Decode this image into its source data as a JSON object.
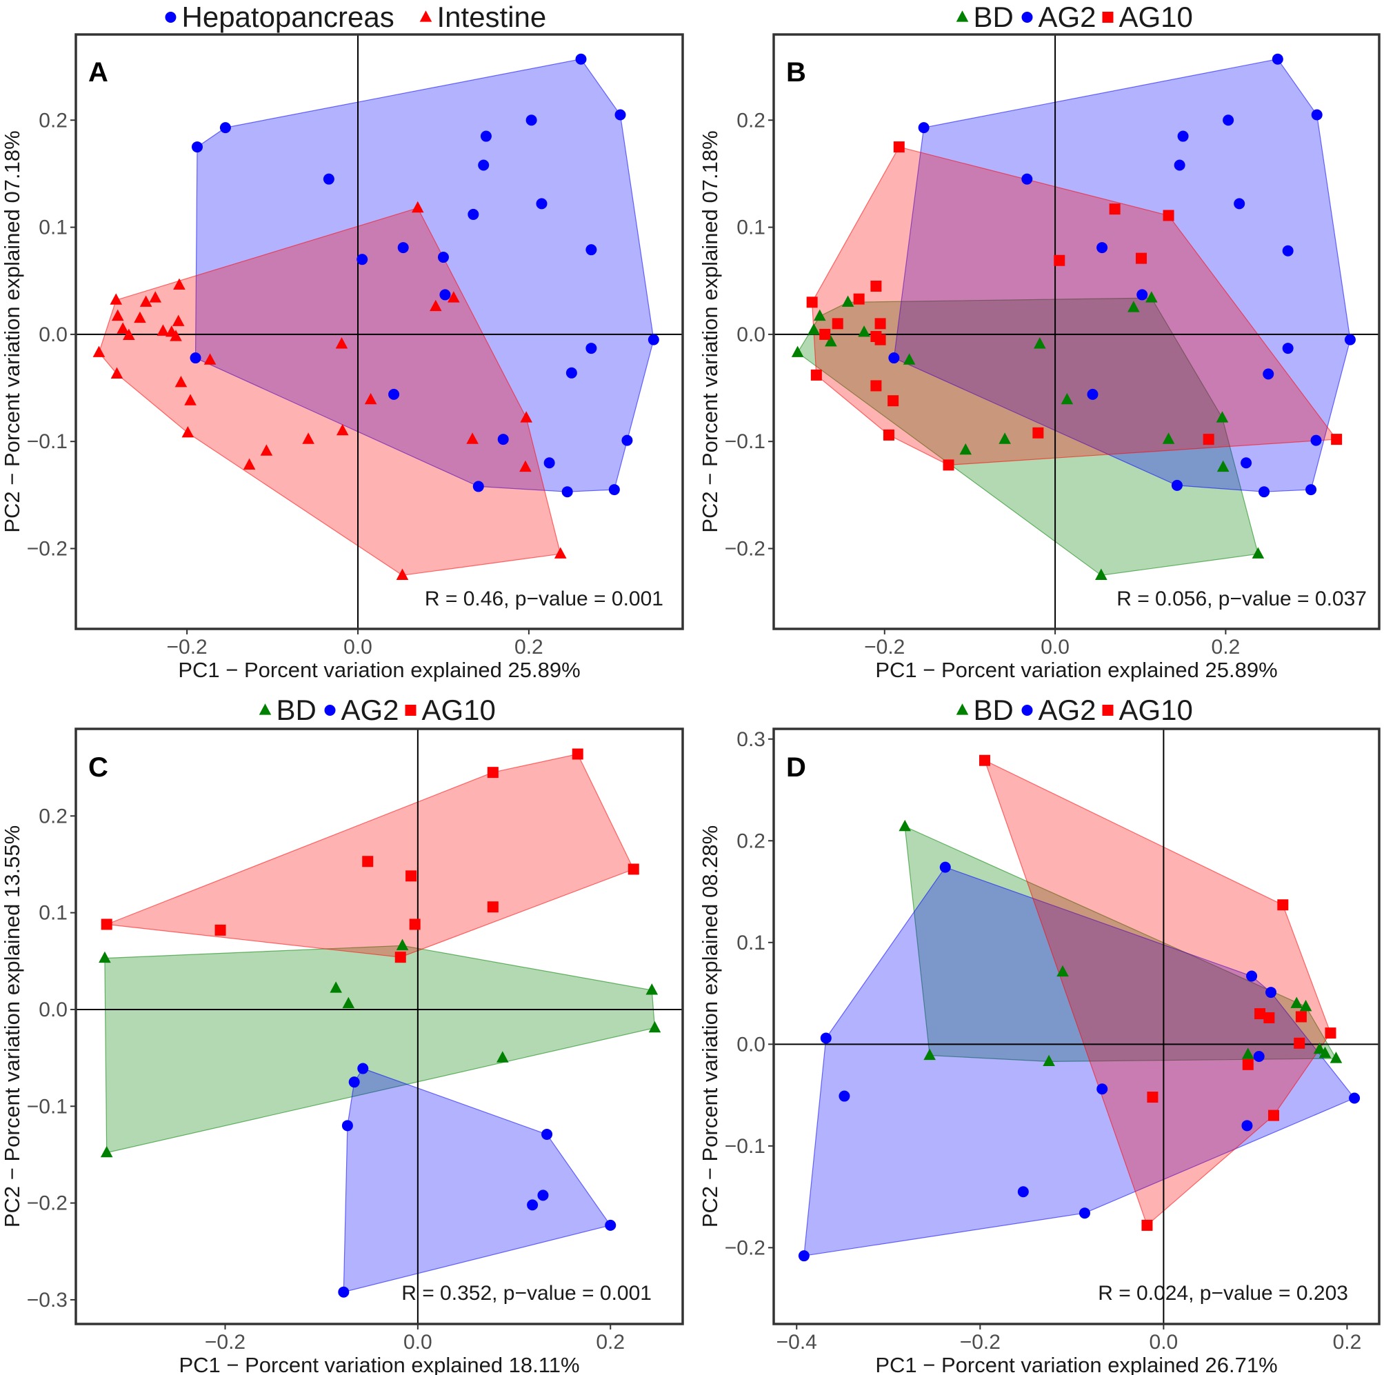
{
  "colors": {
    "hepatopancreas": "#0000ff",
    "intestine": "#ff0000",
    "BD": "#008000",
    "AG2": "#0000ff",
    "AG10": "#ff0000"
  },
  "chart_data": [
    {
      "type": "scatter",
      "panel": "A",
      "xlabel": "PC1 − Porcent variation explained 25.89%",
      "ylabel": "PC2 − Porcent variation explained 07.18%",
      "xlim": [
        -0.33,
        0.38
      ],
      "ylim": [
        -0.275,
        0.28
      ],
      "xticks": [
        -0.2,
        0.0,
        0.2
      ],
      "xtick_labels": [
        "−0.2",
        "0.0",
        "0.2"
      ],
      "yticks": [
        -0.2,
        -0.1,
        0.0,
        0.1,
        0.2
      ],
      "ytick_labels": [
        "−0.2",
        "−0.1",
        "0.0",
        "0.1",
        "0.2"
      ],
      "legend_position": "top",
      "annotation": "R = 0.46, p−value = 0.001",
      "grid": false,
      "series": [
        {
          "name": "Hepatopancreas",
          "color": "#0000ff",
          "marker": "circle",
          "hull": true,
          "points": [
            [
              0.261,
              0.257
            ],
            [
              0.307,
              0.205
            ],
            [
              0.203,
              0.2
            ],
            [
              0.15,
              0.185
            ],
            [
              0.147,
              0.158
            ],
            [
              0.215,
              0.122
            ],
            [
              0.135,
              0.112
            ],
            [
              0.273,
              0.079
            ],
            [
              0.1,
              0.072
            ],
            [
              0.005,
              0.07
            ],
            [
              0.053,
              0.081
            ],
            [
              0.102,
              0.037
            ],
            [
              0.346,
              -0.005
            ],
            [
              0.273,
              -0.013
            ],
            [
              0.25,
              -0.036
            ],
            [
              0.315,
              -0.099
            ],
            [
              0.224,
              -0.12
            ],
            [
              0.245,
              -0.147
            ],
            [
              0.3,
              -0.145
            ],
            [
              0.17,
              -0.098
            ],
            [
              0.141,
              -0.142
            ],
            [
              0.042,
              -0.056
            ],
            [
              -0.188,
              0.175
            ],
            [
              -0.155,
              0.193
            ],
            [
              -0.034,
              0.145
            ],
            [
              -0.19,
              -0.022
            ]
          ]
        },
        {
          "name": "Intestine",
          "color": "#ff0000",
          "marker": "triangle",
          "hull": true,
          "points": [
            [
              0.07,
              0.118
            ],
            [
              -0.303,
              -0.017
            ],
            [
              -0.283,
              0.032
            ],
            [
              -0.281,
              0.017
            ],
            [
              -0.275,
              0.005
            ],
            [
              -0.268,
              -0.001
            ],
            [
              -0.255,
              0.015
            ],
            [
              -0.248,
              0.03
            ],
            [
              -0.237,
              0.034
            ],
            [
              -0.228,
              0.003
            ],
            [
              -0.218,
              0.002
            ],
            [
              -0.213,
              -0.002
            ],
            [
              -0.21,
              0.012
            ],
            [
              -0.209,
              0.046
            ],
            [
              -0.173,
              -0.024
            ],
            [
              -0.282,
              -0.037
            ],
            [
              -0.207,
              -0.045
            ],
            [
              -0.196,
              -0.062
            ],
            [
              -0.199,
              -0.092
            ],
            [
              -0.127,
              -0.122
            ],
            [
              -0.107,
              -0.109
            ],
            [
              -0.058,
              -0.098
            ],
            [
              -0.018,
              -0.09
            ],
            [
              -0.019,
              -0.009
            ],
            [
              0.015,
              -0.061
            ],
            [
              0.091,
              0.026
            ],
            [
              0.112,
              0.034
            ],
            [
              0.134,
              -0.098
            ],
            [
              0.197,
              -0.078
            ],
            [
              0.196,
              -0.124
            ],
            [
              0.237,
              -0.205
            ],
            [
              0.052,
              -0.225
            ]
          ]
        }
      ]
    },
    {
      "type": "scatter",
      "panel": "B",
      "xlabel": "PC1 − Porcent variation explained 25.89%",
      "ylabel": "PC2 − Porcent variation explained 07.18%",
      "xlim": [
        -0.33,
        0.38
      ],
      "ylim": [
        -0.275,
        0.28
      ],
      "xticks": [
        -0.2,
        0.0,
        0.2
      ],
      "xtick_labels": [
        "−0.2",
        "0.0",
        "0.2"
      ],
      "yticks": [
        -0.2,
        -0.1,
        0.0,
        0.1,
        0.2
      ],
      "ytick_labels": [
        "−0.2",
        "−0.1",
        "0.0",
        "0.1",
        "0.2"
      ],
      "legend_position": "top",
      "annotation": "R = 0.056, p−value = 0.037",
      "grid": false,
      "series": [
        {
          "name": "BD",
          "color": "#008000",
          "marker": "triangle",
          "hull": true,
          "points": [
            [
              -0.302,
              -0.017
            ],
            [
              -0.283,
              0.004
            ],
            [
              -0.276,
              0.017
            ],
            [
              -0.263,
              -0.007
            ],
            [
              -0.243,
              0.03
            ],
            [
              -0.224,
              0.002
            ],
            [
              -0.171,
              -0.024
            ],
            [
              -0.105,
              -0.108
            ],
            [
              -0.059,
              -0.098
            ],
            [
              -0.018,
              -0.009
            ],
            [
              0.014,
              -0.061
            ],
            [
              0.092,
              0.025
            ],
            [
              0.113,
              0.034
            ],
            [
              0.133,
              -0.098
            ],
            [
              0.196,
              -0.078
            ],
            [
              0.197,
              -0.124
            ],
            [
              0.238,
              -0.205
            ],
            [
              0.054,
              -0.225
            ]
          ]
        },
        {
          "name": "AG2",
          "color": "#0000ff",
          "marker": "circle",
          "hull": true,
          "points": [
            [
              0.261,
              0.257
            ],
            [
              0.307,
              0.205
            ],
            [
              0.203,
              0.2
            ],
            [
              0.15,
              0.185
            ],
            [
              0.146,
              0.158
            ],
            [
              0.216,
              0.122
            ],
            [
              0.273,
              0.078
            ],
            [
              0.055,
              0.081
            ],
            [
              0.102,
              0.037
            ],
            [
              0.346,
              -0.005
            ],
            [
              0.273,
              -0.013
            ],
            [
              0.25,
              -0.037
            ],
            [
              0.306,
              -0.099
            ],
            [
              0.224,
              -0.12
            ],
            [
              0.245,
              -0.147
            ],
            [
              0.3,
              -0.145
            ],
            [
              0.143,
              -0.141
            ],
            [
              0.044,
              -0.056
            ],
            [
              -0.154,
              0.193
            ],
            [
              -0.033,
              0.145
            ],
            [
              -0.189,
              -0.022
            ]
          ]
        },
        {
          "name": "AG10",
          "color": "#ff0000",
          "marker": "square",
          "hull": true,
          "points": [
            [
              -0.183,
              0.175
            ],
            [
              0.07,
              0.117
            ],
            [
              0.133,
              0.111
            ],
            [
              0.005,
              0.069
            ],
            [
              0.101,
              0.071
            ],
            [
              -0.285,
              0.03
            ],
            [
              -0.27,
              0.0
            ],
            [
              -0.255,
              0.01
            ],
            [
              -0.23,
              0.033
            ],
            [
              -0.21,
              0.045
            ],
            [
              -0.21,
              -0.002
            ],
            [
              -0.205,
              -0.005
            ],
            [
              -0.205,
              0.01
            ],
            [
              -0.28,
              -0.038
            ],
            [
              -0.21,
              -0.048
            ],
            [
              -0.19,
              -0.062
            ],
            [
              -0.195,
              -0.094
            ],
            [
              -0.125,
              -0.122
            ],
            [
              -0.02,
              -0.092
            ],
            [
              0.18,
              -0.098
            ],
            [
              0.33,
              -0.098
            ]
          ]
        }
      ]
    },
    {
      "type": "scatter",
      "panel": "C",
      "xlabel": "PC1 − Porcent variation explained 18.11%",
      "ylabel": "PC2 − Porcent variation explained 13.55%",
      "xlim": [
        -0.355,
        0.275
      ],
      "ylim": [
        -0.325,
        0.29
      ],
      "xticks": [
        -0.2,
        0.0,
        0.2
      ],
      "xtick_labels": [
        "−0.2",
        "0.0",
        "0.2"
      ],
      "yticks": [
        -0.3,
        -0.2,
        -0.1,
        0.0,
        0.1,
        0.2
      ],
      "ytick_labels": [
        "−0.3",
        "−0.2",
        "−0.1",
        "0.0",
        "0.1",
        "0.2"
      ],
      "legend_position": "top",
      "annotation": "R = 0.352, p−value = 0.001",
      "grid": false,
      "series": [
        {
          "name": "BD",
          "color": "#008000",
          "marker": "triangle",
          "hull": true,
          "points": [
            [
              -0.325,
              0.053
            ],
            [
              -0.323,
              -0.148
            ],
            [
              -0.085,
              0.022
            ],
            [
              -0.072,
              0.006
            ],
            [
              -0.016,
              0.066
            ],
            [
              0.088,
              -0.05
            ],
            [
              0.243,
              0.02
            ],
            [
              0.246,
              -0.019
            ]
          ]
        },
        {
          "name": "AG2",
          "color": "#0000ff",
          "marker": "circle",
          "hull": true,
          "points": [
            [
              -0.057,
              -0.061
            ],
            [
              -0.066,
              -0.075
            ],
            [
              -0.073,
              -0.12
            ],
            [
              -0.077,
              -0.292
            ],
            [
              0.134,
              -0.129
            ],
            [
              0.13,
              -0.192
            ],
            [
              0.119,
              -0.202
            ],
            [
              0.2,
              -0.223
            ]
          ]
        },
        {
          "name": "AG10",
          "color": "#ff0000",
          "marker": "square",
          "hull": true,
          "points": [
            [
              -0.323,
              0.088
            ],
            [
              -0.205,
              0.082
            ],
            [
              -0.052,
              0.153
            ],
            [
              -0.007,
              0.138
            ],
            [
              -0.003,
              0.088
            ],
            [
              -0.018,
              0.054
            ],
            [
              0.078,
              0.245
            ],
            [
              0.078,
              0.106
            ],
            [
              0.166,
              0.264
            ],
            [
              0.224,
              0.145
            ]
          ]
        }
      ]
    },
    {
      "type": "scatter",
      "panel": "D",
      "xlabel": "PC1 − Porcent variation explained 26.71%",
      "ylabel": "PC2 − Porcent variation explained 08.28%",
      "xlim": [
        -0.425,
        0.235
      ],
      "ylim": [
        -0.275,
        0.31
      ],
      "xticks": [
        -0.4,
        -0.2,
        0.0,
        0.2
      ],
      "xtick_labels": [
        "−0.4",
        "−0.2",
        "0.0",
        "0.2"
      ],
      "yticks": [
        -0.2,
        -0.1,
        0.0,
        0.1,
        0.2,
        0.3
      ],
      "ytick_labels": [
        "−0.2",
        "−0.1",
        "0.0",
        "0.1",
        "0.2",
        "0.3"
      ],
      "legend_position": "top",
      "annotation": "R = 0.024, p−value = 0.203",
      "grid": false,
      "series": [
        {
          "name": "BD",
          "color": "#008000",
          "marker": "triangle",
          "hull": true,
          "points": [
            [
              -0.282,
              0.214
            ],
            [
              -0.11,
              0.071
            ],
            [
              -0.255,
              -0.011
            ],
            [
              -0.125,
              -0.017
            ],
            [
              0.092,
              -0.01
            ],
            [
              0.145,
              0.04
            ],
            [
              0.155,
              0.037
            ],
            [
              0.17,
              -0.005
            ],
            [
              0.176,
              -0.009
            ],
            [
              0.188,
              -0.014
            ]
          ]
        },
        {
          "name": "AG2",
          "color": "#0000ff",
          "marker": "circle",
          "hull": true,
          "points": [
            [
              -0.392,
              -0.208
            ],
            [
              -0.368,
              0.006
            ],
            [
              -0.348,
              -0.051
            ],
            [
              -0.238,
              0.174
            ],
            [
              -0.153,
              -0.145
            ],
            [
              -0.086,
              -0.166
            ],
            [
              -0.067,
              -0.044
            ],
            [
              0.091,
              -0.08
            ],
            [
              0.096,
              0.067
            ],
            [
              0.104,
              -0.012
            ],
            [
              0.117,
              0.051
            ],
            [
              0.208,
              -0.053
            ]
          ]
        },
        {
          "name": "AG10",
          "color": "#ff0000",
          "marker": "square",
          "hull": true,
          "points": [
            [
              -0.195,
              0.279
            ],
            [
              0.13,
              0.137
            ],
            [
              0.105,
              0.03
            ],
            [
              0.115,
              0.026
            ],
            [
              0.15,
              0.027
            ],
            [
              0.148,
              0.001
            ],
            [
              0.182,
              0.011
            ],
            [
              0.092,
              -0.02
            ],
            [
              -0.012,
              -0.052
            ],
            [
              0.12,
              -0.07
            ],
            [
              -0.018,
              -0.178
            ]
          ]
        }
      ]
    }
  ],
  "legends": {
    "A": [
      {
        "label": "Hepatopancreas",
        "color": "#0000ff",
        "marker": "circle"
      },
      {
        "label": "Intestine",
        "color": "#ff0000",
        "marker": "triangle"
      }
    ],
    "B": [
      {
        "label": "BD",
        "color": "#008000",
        "marker": "triangle"
      },
      {
        "label": "AG2",
        "color": "#0000ff",
        "marker": "circle"
      },
      {
        "label": "AG10",
        "color": "#ff0000",
        "marker": "square"
      }
    ],
    "C": [
      {
        "label": "BD",
        "color": "#008000",
        "marker": "triangle"
      },
      {
        "label": "AG2",
        "color": "#0000ff",
        "marker": "circle"
      },
      {
        "label": "AG10",
        "color": "#ff0000",
        "marker": "square"
      }
    ],
    "D": [
      {
        "label": "BD",
        "color": "#008000",
        "marker": "triangle"
      },
      {
        "label": "AG2",
        "color": "#0000ff",
        "marker": "circle"
      },
      {
        "label": "AG10",
        "color": "#ff0000",
        "marker": "square"
      }
    ]
  }
}
